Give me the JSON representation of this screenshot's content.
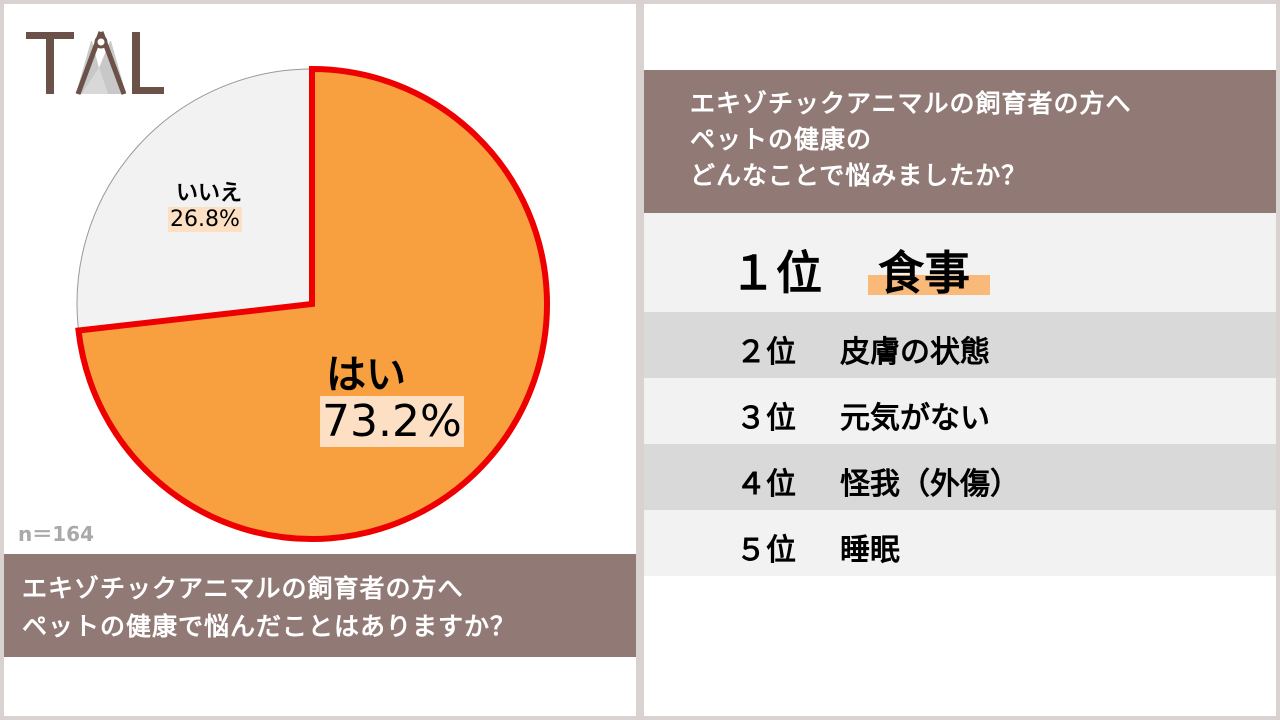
{
  "logo": {
    "text": "TAL"
  },
  "chart_data": {
    "type": "pie",
    "title": "エキゾチックアニマルの飼育者の方へ ペットの健康で悩んだことはありますか？",
    "slices": [
      {
        "label": "はい",
        "value": 73.2,
        "value_label": "73.2%",
        "color": "#f8a040",
        "outline": "#ee0000",
        "highlighted": true
      },
      {
        "label": "いいえ",
        "value": 26.8,
        "value_label": "26.8%",
        "color": "#f2f2f2",
        "outline": "#999999",
        "highlighted": false
      }
    ],
    "start_angle_deg": 0,
    "direction": "clockwise",
    "annotation": "n＝164"
  },
  "left_caption": {
    "lines": [
      "エキゾチックアニマルの飼育者の方へ",
      "ペットの健康で悩んだことはありますか？"
    ]
  },
  "right_caption": {
    "lines": [
      "エキゾチックアニマルの飼育者の方へ",
      "ペットの健康の",
      "どんなことで悩みましたか？"
    ]
  },
  "ranking": [
    {
      "rank": "１位",
      "item": "食事"
    },
    {
      "rank": "２位",
      "item": "皮膚の状態"
    },
    {
      "rank": "３位",
      "item": "元気がない"
    },
    {
      "rank": "４位",
      "item": "怪我（外傷）"
    },
    {
      "rank": "５位",
      "item": "睡眠"
    }
  ],
  "colors": {
    "caption_bg": "#917a76",
    "logo_brown": "#6b5147",
    "highlight": "#fde0c4",
    "rank1_underline": "#f9b978",
    "row_light": "#f2f2f2",
    "row_dark": "#d9d9d9"
  }
}
